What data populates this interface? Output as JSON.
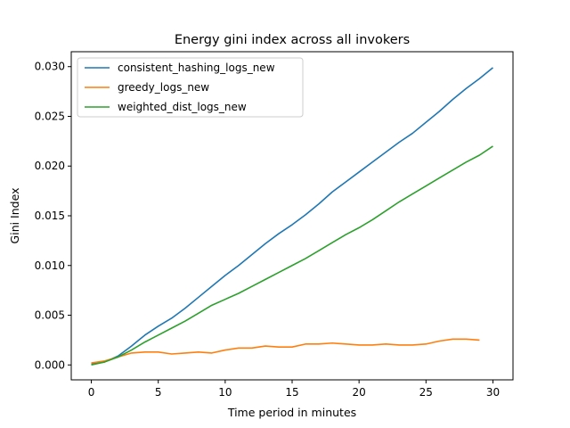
{
  "chart_data": {
    "type": "line",
    "title": "Energy gini index across all invokers",
    "xlabel": "Time period in minutes",
    "ylabel": "Gini Index",
    "xlim": [
      -1.5,
      31.5
    ],
    "ylim": [
      -0.0015,
      0.0315
    ],
    "xticks": [
      0,
      5,
      10,
      15,
      20,
      25,
      30
    ],
    "xtick_labels": [
      "0",
      "5",
      "10",
      "15",
      "20",
      "25",
      "30"
    ],
    "yticks": [
      0.0,
      0.005,
      0.01,
      0.015,
      0.02,
      0.025,
      0.03
    ],
    "ytick_labels": [
      "0.000",
      "0.005",
      "0.010",
      "0.015",
      "0.020",
      "0.025",
      "0.030"
    ],
    "grid": false,
    "legend_position": "top-left",
    "series": [
      {
        "name": "consistent_hashing_logs_new",
        "color": "#1f77b4",
        "x": [
          0,
          1,
          2,
          3,
          4,
          5,
          6,
          7,
          8,
          9,
          10,
          11,
          12,
          13,
          14,
          15,
          16,
          17,
          18,
          19,
          20,
          21,
          22,
          23,
          24,
          25,
          26,
          27,
          28,
          29,
          30
        ],
        "values": [
          0.0001,
          0.0003,
          0.0009,
          0.0019,
          0.003,
          0.0039,
          0.0047,
          0.0057,
          0.0068,
          0.0079,
          0.009,
          0.01,
          0.0111,
          0.0122,
          0.0132,
          0.0141,
          0.0151,
          0.0162,
          0.0174,
          0.0184,
          0.0194,
          0.0204,
          0.0214,
          0.0224,
          0.0233,
          0.0244,
          0.0255,
          0.0267,
          0.0278,
          0.0288,
          0.0299
        ]
      },
      {
        "name": "greedy_logs_new",
        "color": "#ff7f0e",
        "x": [
          0,
          1,
          2,
          3,
          4,
          5,
          6,
          7,
          8,
          9,
          10,
          11,
          12,
          13,
          14,
          15,
          16,
          17,
          18,
          19,
          20,
          21,
          22,
          23,
          24,
          25,
          26,
          27,
          28,
          29
        ],
        "values": [
          0.0002,
          0.0004,
          0.0008,
          0.0012,
          0.0013,
          0.0013,
          0.0011,
          0.0012,
          0.0013,
          0.0012,
          0.0015,
          0.0017,
          0.0017,
          0.0019,
          0.0018,
          0.0018,
          0.0021,
          0.0021,
          0.0022,
          0.0021,
          0.002,
          0.002,
          0.0021,
          0.002,
          0.002,
          0.0021,
          0.0024,
          0.0026,
          0.0026,
          0.0025
        ]
      },
      {
        "name": "weighted_dist_logs_new",
        "color": "#2ca02c",
        "x": [
          0,
          1,
          2,
          3,
          4,
          5,
          6,
          7,
          8,
          9,
          10,
          11,
          12,
          13,
          14,
          15,
          16,
          17,
          18,
          19,
          20,
          21,
          22,
          23,
          24,
          25,
          26,
          27,
          28,
          29,
          30
        ],
        "values": [
          0.0,
          0.0003,
          0.0008,
          0.0015,
          0.0023,
          0.003,
          0.0037,
          0.0044,
          0.0052,
          0.006,
          0.0066,
          0.0072,
          0.0079,
          0.0086,
          0.0093,
          0.01,
          0.0107,
          0.0115,
          0.0123,
          0.0131,
          0.0138,
          0.0146,
          0.0155,
          0.0164,
          0.0172,
          0.018,
          0.0188,
          0.0196,
          0.0204,
          0.0211,
          0.022
        ]
      }
    ]
  }
}
